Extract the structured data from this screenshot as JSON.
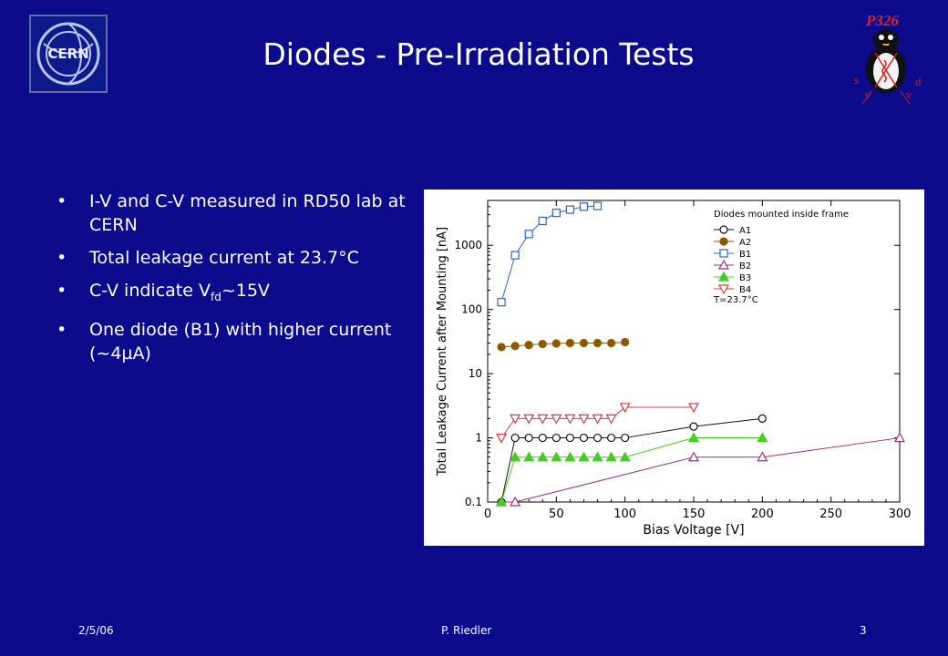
{
  "slide": {
    "title": "Diodes - Pre-Irradiation Tests",
    "logo_text": "CERN",
    "badge": {
      "label": "P326",
      "sym_s": "s",
      "sym_d": "d",
      "sym_nu1": "ν",
      "sym_nu2": "ν"
    },
    "bullets": [
      {
        "text": "I-V and C-V measured in RD50 lab at CERN"
      },
      {
        "text": "Total leakage current at 23.7°C"
      },
      {
        "text_before": "C-V indicate V",
        "sub": "fd",
        "text_after": "~15V"
      },
      {
        "text": "One diode (B1) with higher current (~4µA)"
      }
    ],
    "footer": {
      "date": "2/5/06",
      "author": "P. Riedler",
      "page": "3"
    }
  },
  "chart_data": {
    "type": "line",
    "xlabel": "Bias Voltage [V]",
    "ylabel": "Total Leakage Current after Mounting [nA]",
    "xlim": [
      0,
      300
    ],
    "ylim": [
      0.1,
      5000
    ],
    "yscale": "log",
    "x_ticks": [
      0,
      50,
      100,
      150,
      200,
      250,
      300
    ],
    "y_ticks": [
      0.1,
      1,
      10,
      100,
      1000
    ],
    "y_tick_labels": [
      "0.1",
      "1",
      "10",
      "100",
      "1000"
    ],
    "grid": false,
    "legend_title": "Diodes mounted inside frame",
    "legend_note": "T=23.7°C",
    "legend_position": "top-right",
    "series": [
      {
        "name": "A1",
        "color": "#111111",
        "marker": "circle-open",
        "x": [
          10,
          20,
          30,
          40,
          50,
          60,
          70,
          80,
          90,
          100,
          150,
          200
        ],
        "y": [
          0.1,
          1,
          1,
          1,
          1,
          1,
          1,
          1,
          1,
          1,
          1.5,
          2
        ]
      },
      {
        "name": "A2",
        "color": "#8b5a00",
        "marker": "circle-filled",
        "x": [
          10,
          20,
          30,
          40,
          50,
          60,
          70,
          80,
          90,
          100
        ],
        "y": [
          26,
          27,
          28,
          29,
          29.5,
          30,
          30,
          30,
          30,
          31
        ]
      },
      {
        "name": "B1",
        "color": "#2f63c4",
        "marker": "square-open",
        "x": [
          10,
          20,
          30,
          40,
          50,
          60,
          70,
          80
        ],
        "y": [
          130,
          700,
          1500,
          2400,
          3200,
          3600,
          4000,
          4100
        ]
      },
      {
        "name": "B2",
        "color": "#9b2f7f",
        "marker": "triangle-up-open",
        "x": [
          10,
          20,
          150,
          200,
          300
        ],
        "y": [
          0.1,
          0.1,
          0.5,
          0.5,
          1
        ]
      },
      {
        "name": "B3",
        "color": "#44cc22",
        "marker": "triangle-up-filled",
        "x": [
          10,
          20,
          30,
          40,
          50,
          60,
          70,
          80,
          90,
          100,
          150,
          200
        ],
        "y": [
          0.1,
          0.5,
          0.5,
          0.5,
          0.5,
          0.5,
          0.5,
          0.5,
          0.5,
          0.5,
          1,
          1
        ]
      },
      {
        "name": "B4",
        "color": "#d23c3c",
        "marker": "triangle-down-open",
        "x": [
          10,
          20,
          30,
          40,
          50,
          60,
          70,
          80,
          90,
          100,
          150
        ],
        "y": [
          1,
          2,
          2,
          2,
          2,
          2,
          2,
          2,
          2,
          3,
          3
        ]
      }
    ]
  }
}
